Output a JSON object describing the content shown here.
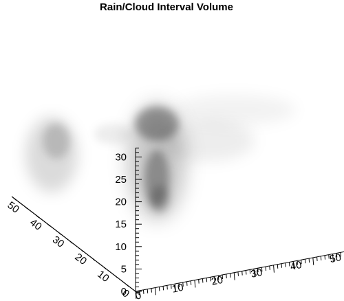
{
  "chart_data": {
    "type": "volume",
    "title": "Rain/Cloud Interval Volume",
    "axes": {
      "x": {
        "range": [
          0,
          55
        ],
        "tick_labels": [
          "0",
          "10",
          "20",
          "30",
          "40",
          "50"
        ]
      },
      "y": {
        "range": [
          0,
          55
        ],
        "tick_labels": [
          "0",
          "10",
          "20",
          "30",
          "40",
          "50"
        ]
      },
      "z": {
        "range": [
          0,
          32
        ],
        "tick_labels": [
          "0",
          "5",
          "10",
          "15",
          "20",
          "25",
          "30"
        ]
      }
    },
    "colormap": "grayscale",
    "grid": false,
    "legend": "none"
  }
}
